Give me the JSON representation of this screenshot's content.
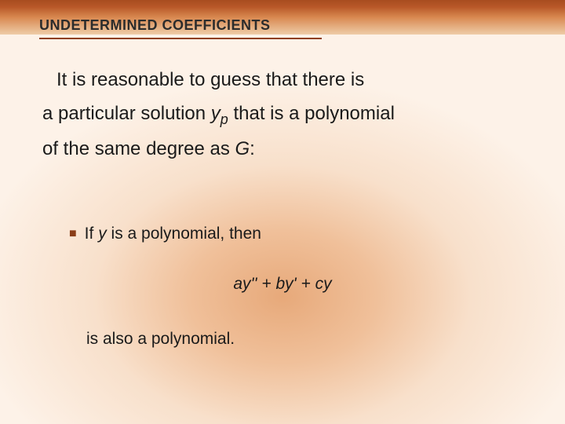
{
  "slide": {
    "background": {
      "gradient_center_color": "#e7a97a",
      "gradient_outer_color": "#fdf2e8",
      "header_gradient_top": "#a84c1f",
      "header_gradient_bottom": "#eecda8",
      "accent_line_color": "#8f3f1a"
    },
    "title": {
      "text": "UNDETERMINED COEFFICIENTS",
      "fontsize": 18,
      "fontweight": "bold",
      "color": "#2c2c2c"
    },
    "body": {
      "line1_indent": "It is reasonable to guess that there is",
      "line2_a": "a particular solution ",
      "line2_yp_y": "y",
      "line2_yp_p": "p",
      "line2_b": " that is a polynomial",
      "line3_a": "of the same degree as ",
      "line3_G": "G",
      "line3_b": ":",
      "fontsize": 24,
      "color": "#1a1a1a"
    },
    "bullet": {
      "marker": "■",
      "marker_color": "#8a3d18",
      "text_a": "If ",
      "text_y": "y",
      "text_b": " is a polynomial, then",
      "fontsize": 21
    },
    "equation": {
      "text": "ay'' + by' + cy",
      "fontsize": 21,
      "fontstyle": "italic"
    },
    "conclusion": {
      "text": "is also a polynomial.",
      "fontsize": 21
    }
  }
}
